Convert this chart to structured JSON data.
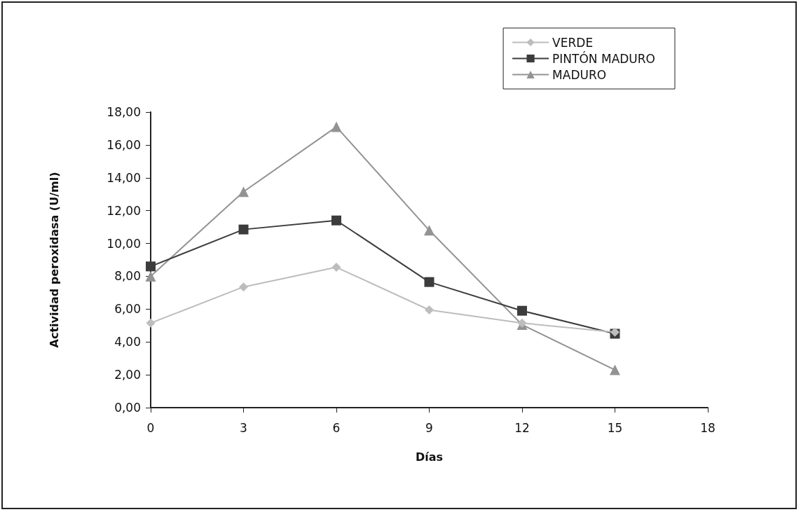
{
  "chart_data": {
    "type": "line",
    "xlabel": "Días",
    "ylabel": "Actividad peroxidasa (U/ml)",
    "x": [
      0,
      3,
      6,
      9,
      12,
      15
    ],
    "series": [
      {
        "name": "VERDE",
        "color": "#bdbdc0",
        "marker": "diamond",
        "values": [
          5.15,
          7.35,
          8.55,
          5.95,
          5.15,
          4.6
        ]
      },
      {
        "name": "PINTÓN MADURO",
        "color": "#3c3c3c",
        "marker": "square",
        "values": [
          8.6,
          10.85,
          11.4,
          7.65,
          5.9,
          4.5
        ]
      },
      {
        "name": "MADURO",
        "color": "#939396",
        "marker": "triangle",
        "values": [
          8.0,
          13.15,
          17.1,
          10.8,
          5.05,
          2.3
        ]
      }
    ],
    "xlim": [
      0,
      18
    ],
    "xticks": [
      0,
      3,
      6,
      9,
      12,
      15,
      18
    ],
    "ylim": [
      0,
      18
    ],
    "yticks": [
      {
        "value": 0,
        "label": "0,00"
      },
      {
        "value": 2,
        "label": "2,00"
      },
      {
        "value": 4,
        "label": "4,00"
      },
      {
        "value": 6,
        "label": "6,00"
      },
      {
        "value": 8,
        "label": "8,00"
      },
      {
        "value": 10,
        "label": "10,00"
      },
      {
        "value": 12,
        "label": "12,00"
      },
      {
        "value": 14,
        "label": "14,00"
      },
      {
        "value": 16,
        "label": "16,00"
      },
      {
        "value": 18,
        "label": "18,00"
      }
    ],
    "grid": false,
    "legend": "top right",
    "line_style": "solid"
  }
}
